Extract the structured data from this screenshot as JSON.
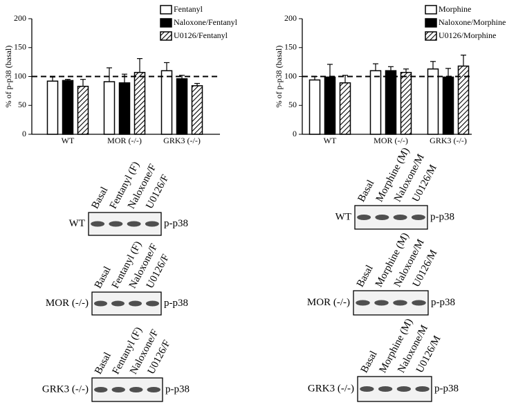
{
  "chart_data": [
    {
      "type": "bar",
      "y_label": "% of p-p38 (basal)",
      "categories": [
        "WT",
        "MOR (-/-)",
        "GRK3 (-/-)"
      ],
      "series": [
        {
          "name": "Fentanyl",
          "color": "#ffffff",
          "values": [
            92,
            91,
            110
          ],
          "errors": [
            7,
            24,
            14
          ]
        },
        {
          "name": "Naloxone/Fentanyl",
          "color": "#000000",
          "values": [
            93,
            89,
            96
          ],
          "errors": [
            2,
            15,
            6
          ]
        },
        {
          "name": "U0126/Fentanyl",
          "color": "#ffffff",
          "hatch": true,
          "values": [
            83,
            107,
            84
          ],
          "errors": [
            12,
            24,
            4
          ]
        }
      ],
      "ylim": [
        0,
        200
      ],
      "yticks": [
        0,
        50,
        100,
        150,
        200
      ],
      "refline": 100
    },
    {
      "type": "bar",
      "y_label": "% of p-p38 (basal)",
      "categories": [
        "WT",
        "MOR (-/-)",
        "GRK3 (-/-)"
      ],
      "series": [
        {
          "name": "Morphine",
          "color": "#ffffff",
          "values": [
            94,
            110,
            113
          ],
          "errors": [
            6,
            12,
            13
          ]
        },
        {
          "name": "Naloxone/Morphine",
          "color": "#000000",
          "values": [
            99,
            110,
            99
          ],
          "errors": [
            22,
            7,
            15
          ]
        },
        {
          "name": "U0126/Morphine",
          "color": "#ffffff",
          "hatch": true,
          "values": [
            89,
            107,
            118
          ],
          "errors": [
            13,
            6,
            19
          ]
        }
      ],
      "ylim": [
        0,
        200
      ],
      "yticks": [
        0,
        50,
        100,
        150,
        200
      ],
      "refline": 100
    }
  ],
  "blots": [
    {
      "genotype": "WT",
      "lanes": [
        "Basal",
        "Fentanyl (F)",
        "Naloxone/F",
        "U0126/F"
      ],
      "band": "p-p38"
    },
    {
      "genotype": "MOR (-/-)",
      "lanes": [
        "Basal",
        "Fentanyl (F)",
        "Naloxone/F",
        "U0126/F"
      ],
      "band": "p-p38"
    },
    {
      "genotype": "GRK3 (-/-)",
      "lanes": [
        "Basal",
        "Fentanyl (F)",
        "Naloxone/F",
        "U0126/F"
      ],
      "band": "p-p38"
    },
    {
      "genotype": "WT",
      "lanes": [
        "Basal",
        "Morphine (M)",
        "Naloxone/M",
        "U0126/M"
      ],
      "band": "p-p38"
    },
    {
      "genotype": "MOR (-/-)",
      "lanes": [
        "Basal",
        "Morphine (M)",
        "Naloxone/M",
        "U0126/M"
      ],
      "band": "p-p38"
    },
    {
      "genotype": "GRK3 (-/-)",
      "lanes": [
        "Basal",
        "Morphine (M)",
        "Naloxone/M",
        "U0126/M"
      ],
      "band": "p-p38"
    }
  ]
}
